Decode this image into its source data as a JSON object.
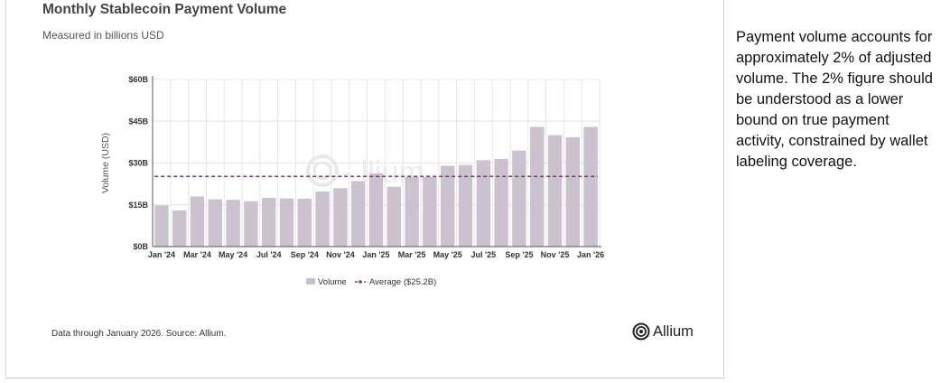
{
  "card": {
    "title": "Monthly Stablecoin Payment Volume",
    "subtitle": "Measured in billions USD",
    "footer": "Data through January 2026. Source: Allium.",
    "brand": "Allium"
  },
  "side_note": "Payment volume accounts for approximately 2% of adjusted volume. The 2% figure should be understood as a lower bound on true payment activity, constrained by wallet labeling coverage.",
  "colors": {
    "bar": "#cbc1cf",
    "average_line": "#7e3f7c",
    "grid": "#e6e6e6",
    "axis": "#555555"
  },
  "chart_data": {
    "type": "bar",
    "ylabel": "Volume (USD)",
    "ylim": [
      0,
      60
    ],
    "yticks": [
      0,
      15,
      30,
      45,
      60
    ],
    "ytick_labels": [
      "$0B",
      "$15B",
      "$30B",
      "$45B",
      "$60B"
    ],
    "categories": [
      "Jan '24",
      "Feb '24",
      "Mar '24",
      "Apr '24",
      "May '24",
      "Jun '24",
      "Jul '24",
      "Aug '24",
      "Sep '24",
      "Oct '24",
      "Nov '24",
      "Dec '24",
      "Jan '25",
      "Feb '25",
      "Mar '25",
      "Apr '25",
      "May '25",
      "Jun '25",
      "Jul '25",
      "Aug '25",
      "Sep '25",
      "Oct '25",
      "Nov '25",
      "Dec '25",
      "Jan '26"
    ],
    "xtick_labels": [
      "Jan '24",
      "Mar '24",
      "May '24",
      "Jul '24",
      "Sep '24",
      "Nov '24",
      "Jan '25",
      "Mar '25",
      "May '25",
      "Jul '25",
      "Sep '25",
      "Nov '25",
      "Jan '26"
    ],
    "series": [
      {
        "name": "Volume",
        "values": [
          14.8,
          13,
          18,
          17,
          16.8,
          16.3,
          17.5,
          17.3,
          17.2,
          19.8,
          21,
          23.5,
          26.3,
          21.5,
          25,
          25,
          29,
          29.3,
          31,
          31.5,
          34.5,
          43,
          40,
          39.3,
          43
        ]
      }
    ],
    "average": {
      "name": "Average ($25.2B)",
      "value": 25.2
    },
    "legend_position": "bottom-center",
    "grid": true
  }
}
